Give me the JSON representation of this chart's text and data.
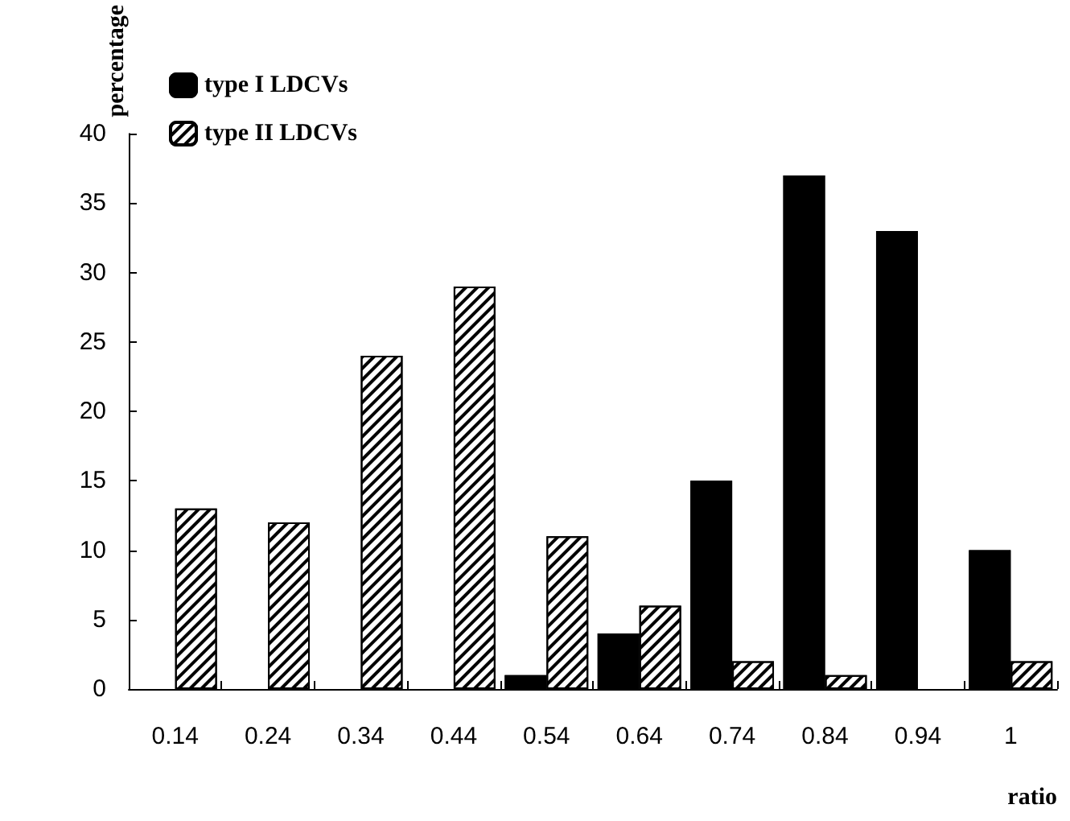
{
  "chart_data": {
    "type": "bar",
    "xlabel": "ratio",
    "ylabel": "percentage",
    "categories": [
      "0.14",
      "0.24",
      "0.34",
      "0.44",
      "0.54",
      "0.64",
      "0.74",
      "0.84",
      "0.94",
      "1"
    ],
    "series": [
      {
        "name": "type I LDCVs",
        "color": "#000000",
        "values": [
          0,
          0,
          0,
          0,
          1,
          4,
          15,
          37,
          33,
          10
        ]
      },
      {
        "name": "type II LDCVs",
        "color": "#ffffff",
        "values": [
          13,
          12,
          24,
          29,
          11,
          6,
          2,
          1,
          0,
          2
        ]
      }
    ],
    "ylim": [
      0,
      40
    ],
    "yticks": [
      0,
      5,
      10,
      15,
      20,
      25,
      30,
      35,
      40
    ],
    "grid": false,
    "legend": "top left"
  }
}
